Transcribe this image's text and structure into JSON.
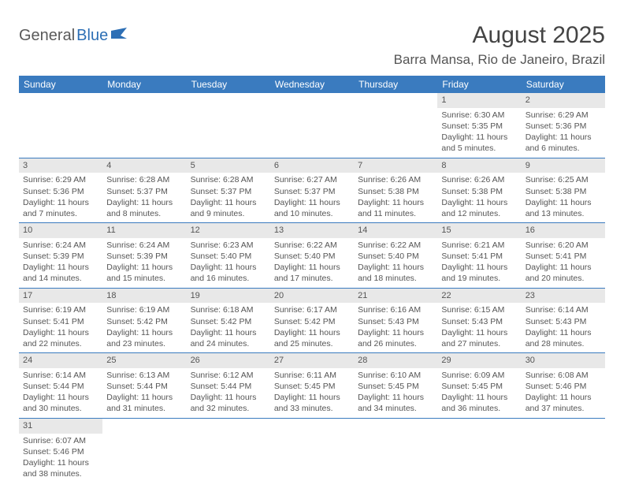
{
  "logo": {
    "part1": "General",
    "part2": "Blue"
  },
  "title": "August 2025",
  "location": "Barra Mansa, Rio de Janeiro, Brazil",
  "colors": {
    "header_bg": "#3a7bbf",
    "header_text": "#ffffff",
    "daynum_bg": "#e8e8e8",
    "row_border": "#3a7bbf",
    "text": "#555555",
    "logo_gray": "#5a5a5a",
    "logo_blue": "#2d6fb5"
  },
  "weekdays": [
    "Sunday",
    "Monday",
    "Tuesday",
    "Wednesday",
    "Thursday",
    "Friday",
    "Saturday"
  ],
  "weeks": [
    [
      null,
      null,
      null,
      null,
      null,
      {
        "n": "1",
        "sr": "Sunrise: 6:30 AM",
        "ss": "Sunset: 5:35 PM",
        "dl1": "Daylight: 11 hours",
        "dl2": "and 5 minutes."
      },
      {
        "n": "2",
        "sr": "Sunrise: 6:29 AM",
        "ss": "Sunset: 5:36 PM",
        "dl1": "Daylight: 11 hours",
        "dl2": "and 6 minutes."
      }
    ],
    [
      {
        "n": "3",
        "sr": "Sunrise: 6:29 AM",
        "ss": "Sunset: 5:36 PM",
        "dl1": "Daylight: 11 hours",
        "dl2": "and 7 minutes."
      },
      {
        "n": "4",
        "sr": "Sunrise: 6:28 AM",
        "ss": "Sunset: 5:37 PM",
        "dl1": "Daylight: 11 hours",
        "dl2": "and 8 minutes."
      },
      {
        "n": "5",
        "sr": "Sunrise: 6:28 AM",
        "ss": "Sunset: 5:37 PM",
        "dl1": "Daylight: 11 hours",
        "dl2": "and 9 minutes."
      },
      {
        "n": "6",
        "sr": "Sunrise: 6:27 AM",
        "ss": "Sunset: 5:37 PM",
        "dl1": "Daylight: 11 hours",
        "dl2": "and 10 minutes."
      },
      {
        "n": "7",
        "sr": "Sunrise: 6:26 AM",
        "ss": "Sunset: 5:38 PM",
        "dl1": "Daylight: 11 hours",
        "dl2": "and 11 minutes."
      },
      {
        "n": "8",
        "sr": "Sunrise: 6:26 AM",
        "ss": "Sunset: 5:38 PM",
        "dl1": "Daylight: 11 hours",
        "dl2": "and 12 minutes."
      },
      {
        "n": "9",
        "sr": "Sunrise: 6:25 AM",
        "ss": "Sunset: 5:38 PM",
        "dl1": "Daylight: 11 hours",
        "dl2": "and 13 minutes."
      }
    ],
    [
      {
        "n": "10",
        "sr": "Sunrise: 6:24 AM",
        "ss": "Sunset: 5:39 PM",
        "dl1": "Daylight: 11 hours",
        "dl2": "and 14 minutes."
      },
      {
        "n": "11",
        "sr": "Sunrise: 6:24 AM",
        "ss": "Sunset: 5:39 PM",
        "dl1": "Daylight: 11 hours",
        "dl2": "and 15 minutes."
      },
      {
        "n": "12",
        "sr": "Sunrise: 6:23 AM",
        "ss": "Sunset: 5:40 PM",
        "dl1": "Daylight: 11 hours",
        "dl2": "and 16 minutes."
      },
      {
        "n": "13",
        "sr": "Sunrise: 6:22 AM",
        "ss": "Sunset: 5:40 PM",
        "dl1": "Daylight: 11 hours",
        "dl2": "and 17 minutes."
      },
      {
        "n": "14",
        "sr": "Sunrise: 6:22 AM",
        "ss": "Sunset: 5:40 PM",
        "dl1": "Daylight: 11 hours",
        "dl2": "and 18 minutes."
      },
      {
        "n": "15",
        "sr": "Sunrise: 6:21 AM",
        "ss": "Sunset: 5:41 PM",
        "dl1": "Daylight: 11 hours",
        "dl2": "and 19 minutes."
      },
      {
        "n": "16",
        "sr": "Sunrise: 6:20 AM",
        "ss": "Sunset: 5:41 PM",
        "dl1": "Daylight: 11 hours",
        "dl2": "and 20 minutes."
      }
    ],
    [
      {
        "n": "17",
        "sr": "Sunrise: 6:19 AM",
        "ss": "Sunset: 5:41 PM",
        "dl1": "Daylight: 11 hours",
        "dl2": "and 22 minutes."
      },
      {
        "n": "18",
        "sr": "Sunrise: 6:19 AM",
        "ss": "Sunset: 5:42 PM",
        "dl1": "Daylight: 11 hours",
        "dl2": "and 23 minutes."
      },
      {
        "n": "19",
        "sr": "Sunrise: 6:18 AM",
        "ss": "Sunset: 5:42 PM",
        "dl1": "Daylight: 11 hours",
        "dl2": "and 24 minutes."
      },
      {
        "n": "20",
        "sr": "Sunrise: 6:17 AM",
        "ss": "Sunset: 5:42 PM",
        "dl1": "Daylight: 11 hours",
        "dl2": "and 25 minutes."
      },
      {
        "n": "21",
        "sr": "Sunrise: 6:16 AM",
        "ss": "Sunset: 5:43 PM",
        "dl1": "Daylight: 11 hours",
        "dl2": "and 26 minutes."
      },
      {
        "n": "22",
        "sr": "Sunrise: 6:15 AM",
        "ss": "Sunset: 5:43 PM",
        "dl1": "Daylight: 11 hours",
        "dl2": "and 27 minutes."
      },
      {
        "n": "23",
        "sr": "Sunrise: 6:14 AM",
        "ss": "Sunset: 5:43 PM",
        "dl1": "Daylight: 11 hours",
        "dl2": "and 28 minutes."
      }
    ],
    [
      {
        "n": "24",
        "sr": "Sunrise: 6:14 AM",
        "ss": "Sunset: 5:44 PM",
        "dl1": "Daylight: 11 hours",
        "dl2": "and 30 minutes."
      },
      {
        "n": "25",
        "sr": "Sunrise: 6:13 AM",
        "ss": "Sunset: 5:44 PM",
        "dl1": "Daylight: 11 hours",
        "dl2": "and 31 minutes."
      },
      {
        "n": "26",
        "sr": "Sunrise: 6:12 AM",
        "ss": "Sunset: 5:44 PM",
        "dl1": "Daylight: 11 hours",
        "dl2": "and 32 minutes."
      },
      {
        "n": "27",
        "sr": "Sunrise: 6:11 AM",
        "ss": "Sunset: 5:45 PM",
        "dl1": "Daylight: 11 hours",
        "dl2": "and 33 minutes."
      },
      {
        "n": "28",
        "sr": "Sunrise: 6:10 AM",
        "ss": "Sunset: 5:45 PM",
        "dl1": "Daylight: 11 hours",
        "dl2": "and 34 minutes."
      },
      {
        "n": "29",
        "sr": "Sunrise: 6:09 AM",
        "ss": "Sunset: 5:45 PM",
        "dl1": "Daylight: 11 hours",
        "dl2": "and 36 minutes."
      },
      {
        "n": "30",
        "sr": "Sunrise: 6:08 AM",
        "ss": "Sunset: 5:46 PM",
        "dl1": "Daylight: 11 hours",
        "dl2": "and 37 minutes."
      }
    ],
    [
      {
        "n": "31",
        "sr": "Sunrise: 6:07 AM",
        "ss": "Sunset: 5:46 PM",
        "dl1": "Daylight: 11 hours",
        "dl2": "and 38 minutes."
      },
      null,
      null,
      null,
      null,
      null,
      null
    ]
  ]
}
